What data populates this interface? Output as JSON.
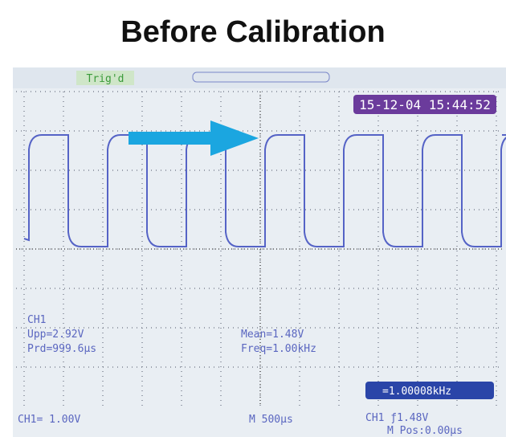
{
  "title": "Before Calibration",
  "status": "Trig'd",
  "timestamp": "15-12-04 15:44:52",
  "measurements": {
    "channel": "CH1",
    "upp": "Upp=2.92V",
    "prd": "Prd=999.6μs",
    "mean": "Mean=1.48V",
    "freq": "Freq=1.00kHz"
  },
  "counter": "=1.00008kHz",
  "footer": {
    "scale": "CH1= 1.00V",
    "timebase": "M 500μs",
    "trigger": "CH1 ƒ1.48V",
    "position": "M Pos:0.00μs"
  }
}
